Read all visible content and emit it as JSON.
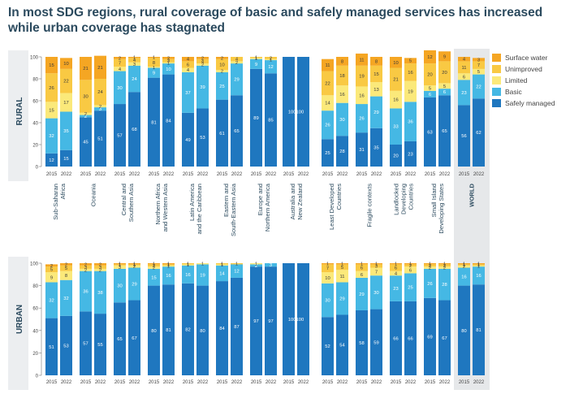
{
  "title": "In most SDG regions, rural coverage of basic and safely managed services has increased while urban coverage has stagnated",
  "legend": [
    {
      "name": "Surface water",
      "color": "#f5a623"
    },
    {
      "name": "Unimproved",
      "color": "#f9c943"
    },
    {
      "name": "Limited",
      "color": "#fbe97a"
    },
    {
      "name": "Basic",
      "color": "#45b8e4"
    },
    {
      "name": "Safely managed",
      "color": "#1f77bf"
    }
  ],
  "chart_data": {
    "type": "bar",
    "stacked": true,
    "years": [
      "2015",
      "2022"
    ],
    "yticks": [
      "0",
      "20",
      "40",
      "60",
      "80",
      "100"
    ],
    "ylim": [
      0,
      100
    ],
    "panels": [
      "RURAL",
      "URBAN"
    ],
    "series_order": [
      "Safely managed",
      "Basic",
      "Limited",
      "Unimproved",
      "Surface water"
    ],
    "regions": [
      {
        "label": "Sub-Saharan Africa",
        "lines": [
          "Sub-Saharan",
          "Africa"
        ],
        "rural": [
          [
            12,
            32,
            15,
            26,
            15
          ],
          [
            15,
            35,
            17,
            22,
            10
          ]
        ],
        "urban": [
          [
            51,
            32,
            9,
            5,
            2
          ],
          [
            53,
            32,
            8,
            5,
            2
          ]
        ]
      },
      {
        "label": "Oceania",
        "lines": [
          "Oceania"
        ],
        "rural": [
          [
            45,
            2,
            2,
            30,
            21
          ],
          [
            51,
            3,
            2,
            24,
            21
          ]
        ],
        "urban": [
          [
            57,
            36,
            2,
            3,
            2
          ],
          [
            55,
            38,
            2,
            3,
            2
          ]
        ]
      },
      {
        "label": "Central and Southern Asia",
        "lines": [
          "Central and",
          "Southern Asia"
        ],
        "rural": [
          [
            57,
            30,
            4,
            7,
            2
          ],
          [
            68,
            24,
            3,
            4,
            1
          ]
        ],
        "urban": [
          [
            65,
            30,
            3,
            1,
            1
          ],
          [
            67,
            29,
            2,
            1,
            1
          ]
        ]
      },
      {
        "label": "Northern Africa and Western Asia",
        "lines": [
          "Northern Africa",
          "and Western Asia"
        ],
        "rural": [
          [
            81,
            9,
            1,
            8,
            1
          ],
          [
            84,
            10,
            1,
            3,
            2
          ]
        ],
        "urban": [
          [
            80,
            15,
            2,
            2,
            1
          ],
          [
            81,
            16,
            1,
            1,
            1
          ]
        ]
      },
      {
        "label": "Latin America and the Caribbean",
        "lines": [
          "Latin America",
          "and the Caribbean"
        ],
        "rural": [
          [
            49,
            37,
            4,
            6,
            4
          ],
          [
            53,
            39,
            2,
            4,
            2
          ]
        ],
        "urban": [
          [
            82,
            16,
            1,
            1,
            0
          ],
          [
            80,
            19,
            1,
            0,
            0
          ]
        ]
      },
      {
        "label": "Eastern and South-Eastern Asia",
        "lines": [
          "Eastern and",
          "South-Eastern Asia"
        ],
        "rural": [
          [
            61,
            25,
            2,
            10,
            2
          ],
          [
            65,
            29,
            2,
            4,
            0
          ]
        ],
        "urban": [
          [
            84,
            14,
            1,
            1,
            0
          ],
          [
            87,
            12,
            0,
            1,
            0
          ]
        ]
      },
      {
        "label": "Europe and Northern America",
        "lines": [
          "Europe and",
          "Northern America"
        ],
        "rural": [
          [
            89,
            9,
            1,
            1,
            0
          ],
          [
            85,
            12,
            1,
            2,
            0
          ]
        ],
        "urban": [
          [
            97,
            2,
            1,
            0,
            0
          ],
          [
            97,
            3,
            0,
            0,
            0
          ]
        ]
      },
      {
        "label": "Australia and New Zealand",
        "lines": [
          "Australia and",
          "New Zealand"
        ],
        "rural": [
          [
            100,
            0,
            0,
            0,
            0
          ],
          [
            100,
            0,
            0,
            0,
            0
          ]
        ],
        "urban": [
          [
            100,
            0,
            0,
            0,
            0
          ],
          [
            100,
            0,
            0,
            0,
            0
          ]
        ]
      },
      {
        "label": "Least Developed Countries",
        "lines": [
          "Least Developed",
          "Countries"
        ],
        "rural": [
          [
            25,
            26,
            14,
            22,
            11
          ],
          [
            28,
            30,
            16,
            18,
            8
          ]
        ],
        "urban": [
          [
            52,
            30,
            10,
            7,
            1
          ],
          [
            54,
            29,
            11,
            5,
            1
          ]
        ]
      },
      {
        "label": "Fragile contexts",
        "lines": [
          "Fragile contexts"
        ],
        "rural": [
          [
            31,
            26,
            16,
            19,
            11
          ],
          [
            35,
            29,
            13,
            15,
            8
          ]
        ],
        "urban": [
          [
            58,
            29,
            6,
            6,
            1
          ],
          [
            59,
            30,
            7,
            3,
            1
          ]
        ]
      },
      {
        "label": "Landlocked Developing Countries",
        "lines": [
          "Landlocked",
          "Developing",
          "Countries"
        ],
        "rural": [
          [
            20,
            33,
            16,
            21,
            10
          ],
          [
            23,
            36,
            19,
            16,
            5
          ]
        ],
        "urban": [
          [
            66,
            23,
            4,
            6,
            1
          ],
          [
            66,
            25,
            6,
            2,
            1
          ]
        ]
      },
      {
        "label": "Small Island Developing States",
        "lines": [
          "Small Island",
          "Developing States"
        ],
        "rural": [
          [
            63,
            6,
            5,
            20,
            12
          ],
          [
            65,
            6,
            5,
            20,
            9
          ]
        ],
        "urban": [
          [
            69,
            26,
            2,
            2,
            1
          ],
          [
            67,
            28,
            2,
            2,
            1
          ]
        ]
      },
      {
        "label": "WORLD",
        "lines": [
          "WORLD"
        ],
        "world": true,
        "rural": [
          [
            56,
            23,
            6,
            11,
            4
          ],
          [
            62,
            22,
            5,
            7,
            3
          ]
        ],
        "urban": [
          [
            80,
            16,
            2,
            1,
            1
          ],
          [
            81,
            16,
            1,
            1,
            1
          ]
        ]
      }
    ]
  }
}
